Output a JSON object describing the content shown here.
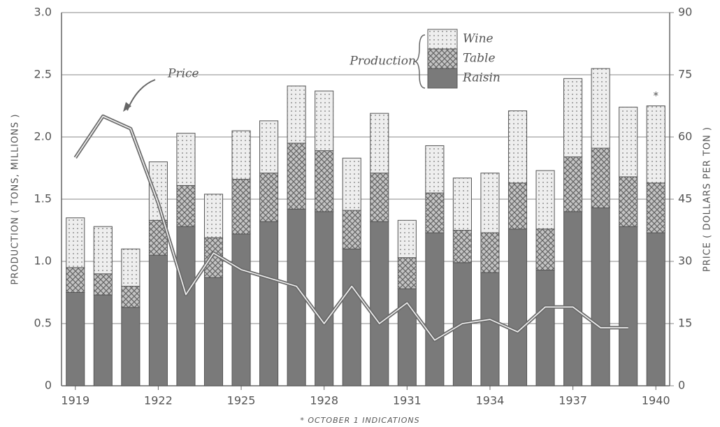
{
  "chart_data": {
    "type": "stacked_bar_line",
    "y_label": "PRODUCTION ( TONS, MILLIONS )",
    "y2_label": "PRICE ( DOLLARS PER TON )",
    "footnote": "* OCTOBER 1 INDICATIONS",
    "legend_title": "Production",
    "annotation": "*",
    "categories": [
      "1919",
      null,
      null,
      "1922",
      null,
      null,
      "1925",
      null,
      null,
      "1928",
      null,
      null,
      "1931",
      null,
      null,
      "1934",
      null,
      null,
      "1937",
      null,
      null,
      "1940"
    ],
    "series": [
      {
        "name": "Raisin",
        "color": "#7a7a7a",
        "values": [
          0.75,
          0.73,
          0.63,
          1.05,
          1.28,
          0.87,
          1.22,
          1.32,
          1.42,
          1.4,
          1.1,
          1.32,
          0.78,
          1.23,
          0.99,
          0.91,
          1.26,
          0.93,
          1.4,
          1.43,
          1.28,
          1.23
        ]
      },
      {
        "name": "Table",
        "color": "#b4b4b4",
        "values": [
          0.2,
          0.17,
          0.17,
          0.28,
          0.33,
          0.32,
          0.44,
          0.39,
          0.53,
          0.49,
          0.31,
          0.39,
          0.25,
          0.32,
          0.26,
          0.32,
          0.37,
          0.33,
          0.44,
          0.48,
          0.4,
          0.4
        ]
      },
      {
        "name": "Wine",
        "color": "#e6e6e6",
        "values": [
          0.4,
          0.38,
          0.3,
          0.47,
          0.42,
          0.35,
          0.39,
          0.42,
          0.46,
          0.48,
          0.42,
          0.48,
          0.3,
          0.38,
          0.42,
          0.48,
          0.58,
          0.47,
          0.63,
          0.64,
          0.56,
          0.62
        ]
      },
      {
        "name": "Price",
        "color": "#6a6a6a",
        "axis": "y2",
        "values": [
          55,
          65,
          62,
          44,
          22,
          32,
          28,
          26,
          24,
          15,
          24,
          15,
          20,
          11,
          15,
          16,
          13,
          19,
          19,
          14,
          14,
          null
        ]
      }
    ],
    "ylim": [
      0,
      3
    ],
    "yticks": [
      0,
      0.5,
      {
        "value": 1,
        "label": "1.0"
      },
      1.5,
      {
        "value": 2,
        "label": "2.0"
      },
      2.5,
      {
        "value": 3,
        "label": "3.0"
      }
    ],
    "y2lim": [
      0,
      90
    ],
    "y2ticks": [
      0,
      15,
      30,
      45,
      60,
      75,
      90
    ],
    "grid": true
  }
}
